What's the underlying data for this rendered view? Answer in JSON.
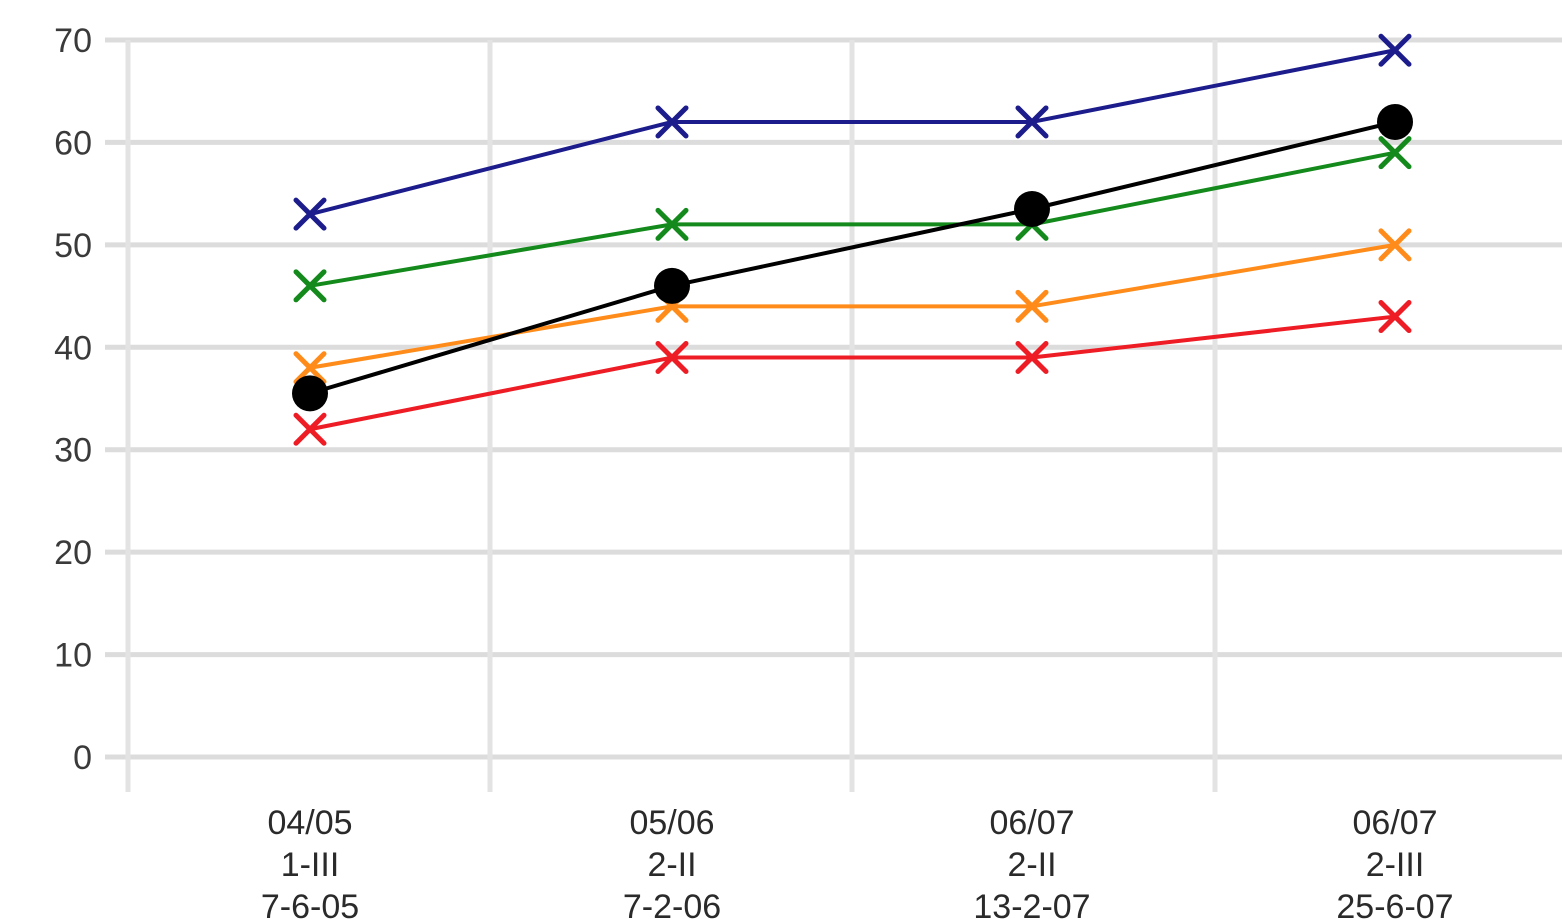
{
  "chart_data": {
    "type": "line",
    "title": "",
    "xlabel": "",
    "ylabel": "",
    "ylim": [
      0,
      70
    ],
    "yticks": [
      0,
      10,
      20,
      30,
      40,
      50,
      60,
      70
    ],
    "grid": true,
    "legend": "none",
    "categories": [
      [
        "04/05",
        "1-III",
        "7-6-05"
      ],
      [
        "05/06",
        "2-II",
        "7-2-06"
      ],
      [
        "06/07",
        "2-II",
        "13-2-07"
      ],
      [
        "06/07",
        "2-III",
        "25-6-07"
      ]
    ],
    "series": [
      {
        "color": "#1c1c8c",
        "marker": "x",
        "values": [
          53,
          62,
          62,
          69
        ]
      },
      {
        "color": "#138a1b",
        "marker": "x",
        "values": [
          46,
          52,
          52,
          59
        ]
      },
      {
        "color": "#ff8c1a",
        "marker": "x",
        "values": [
          38,
          44,
          44,
          50
        ]
      },
      {
        "color": "#ee1c24",
        "marker": "x",
        "values": [
          32,
          39,
          39,
          43
        ]
      },
      {
        "color": "#000000",
        "marker": "circle",
        "values": [
          35.5,
          46,
          53.5,
          62
        ]
      }
    ]
  }
}
